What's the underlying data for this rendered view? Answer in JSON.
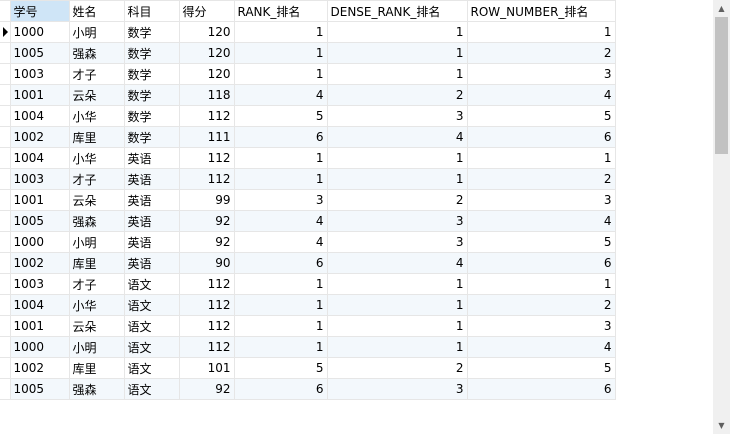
{
  "columns": [
    "学号",
    "姓名",
    "科目",
    "得分",
    "RANK_排名",
    "DENSE_RANK_排名",
    "ROW_NUMBER_排名"
  ],
  "rows": [
    [
      "1000",
      "小明",
      "数学",
      "120",
      "1",
      "1",
      "1"
    ],
    [
      "1005",
      "强森",
      "数学",
      "120",
      "1",
      "1",
      "2"
    ],
    [
      "1003",
      "才子",
      "数学",
      "120",
      "1",
      "1",
      "3"
    ],
    [
      "1001",
      "云朵",
      "数学",
      "118",
      "4",
      "2",
      "4"
    ],
    [
      "1004",
      "小华",
      "数学",
      "112",
      "5",
      "3",
      "5"
    ],
    [
      "1002",
      "库里",
      "数学",
      "111",
      "6",
      "4",
      "6"
    ],
    [
      "1004",
      "小华",
      "英语",
      "112",
      "1",
      "1",
      "1"
    ],
    [
      "1003",
      "才子",
      "英语",
      "112",
      "1",
      "1",
      "2"
    ],
    [
      "1001",
      "云朵",
      "英语",
      "99",
      "3",
      "2",
      "3"
    ],
    [
      "1005",
      "强森",
      "英语",
      "92",
      "4",
      "3",
      "4"
    ],
    [
      "1000",
      "小明",
      "英语",
      "92",
      "4",
      "3",
      "5"
    ],
    [
      "1002",
      "库里",
      "英语",
      "90",
      "6",
      "4",
      "6"
    ],
    [
      "1003",
      "才子",
      "语文",
      "112",
      "1",
      "1",
      "1"
    ],
    [
      "1004",
      "小华",
      "语文",
      "112",
      "1",
      "1",
      "2"
    ],
    [
      "1001",
      "云朵",
      "语文",
      "112",
      "1",
      "1",
      "3"
    ],
    [
      "1000",
      "小明",
      "语文",
      "112",
      "1",
      "1",
      "4"
    ],
    [
      "1002",
      "库里",
      "语文",
      "101",
      "5",
      "2",
      "5"
    ],
    [
      "1005",
      "强森",
      "语文",
      "92",
      "6",
      "3",
      "6"
    ]
  ],
  "scrollbar": {
    "up_icon": "scroll-up-arrow-icon",
    "down_icon": "scroll-down-arrow-icon"
  },
  "colors": {
    "selected_header": "#cfe5f7",
    "alt_row": "#f3f8fc",
    "grid_line": "#e6e6e6"
  }
}
